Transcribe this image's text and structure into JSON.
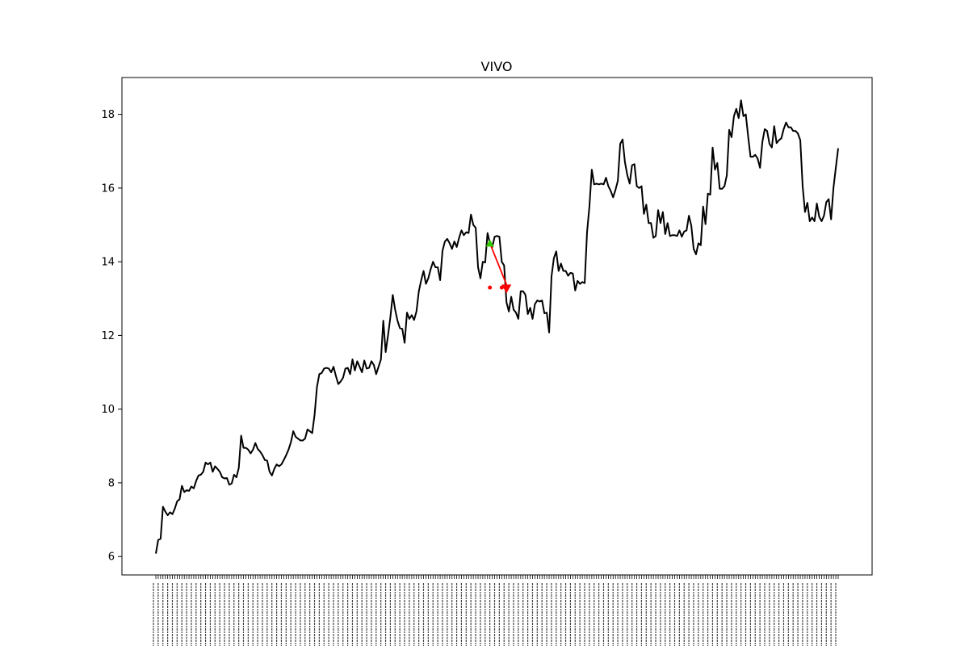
{
  "chart_data": {
    "type": "line",
    "title": "VIVO",
    "xlabel": "",
    "ylabel": "",
    "ylim": [
      5.5,
      19.0
    ],
    "yticks": [
      6,
      8,
      10,
      12,
      14,
      16,
      18
    ],
    "grid": false,
    "colors": {
      "line": "#000000",
      "arrow": "#ff0000",
      "start_marker": "#33cc00",
      "end_marker": "#ff0000",
      "dots": "#ff0000"
    },
    "series": [
      {
        "values": [
          6.08,
          6.45,
          6.48,
          7.35,
          7.22,
          7.12,
          7.2,
          7.15,
          7.3,
          7.5,
          7.55,
          7.92,
          7.75,
          7.8,
          7.78,
          7.9,
          7.85,
          8.05,
          8.2,
          8.22,
          8.3,
          8.55,
          8.5,
          8.55,
          8.3,
          8.45,
          8.38,
          8.3,
          8.15,
          8.12,
          8.13,
          7.95,
          7.98,
          8.22,
          8.15,
          8.4,
          9.28,
          8.95,
          8.95,
          8.9,
          8.8,
          8.9,
          9.08,
          8.92,
          8.85,
          8.75,
          8.62,
          8.6,
          8.3,
          8.2,
          8.38,
          8.5,
          8.45,
          8.5,
          8.62,
          8.75,
          8.9,
          9.1,
          9.4,
          9.25,
          9.2,
          9.15,
          9.15,
          9.2,
          9.45,
          9.4,
          9.35,
          9.85,
          10.6,
          10.95,
          10.98,
          11.1,
          11.12,
          11.1,
          11.0,
          11.15,
          10.9,
          10.68,
          10.75,
          10.85,
          11.1,
          11.12,
          10.95,
          11.35,
          11.05,
          11.3,
          11.15,
          11.0,
          11.32,
          11.1,
          11.12,
          11.3,
          11.2,
          10.95,
          11.15,
          11.35,
          12.4,
          11.55,
          12.0,
          12.5,
          13.1,
          12.7,
          12.4,
          12.2,
          12.18,
          11.8,
          12.62,
          12.45,
          12.55,
          12.42,
          12.65,
          13.2,
          13.5,
          13.75,
          13.4,
          13.55,
          13.8,
          14.0,
          13.85,
          13.85,
          13.5,
          14.3,
          14.55,
          14.62,
          14.5,
          14.35,
          14.55,
          14.4,
          14.65,
          14.85,
          14.72,
          14.8,
          14.78,
          15.28,
          15.0,
          14.92,
          13.85,
          13.55,
          14.0,
          13.98,
          14.78,
          14.5,
          14.4,
          14.68,
          14.7,
          14.68,
          14.0,
          13.9,
          12.9,
          12.65,
          13.05,
          12.7,
          12.62,
          12.45,
          13.2,
          13.2,
          13.1,
          12.58,
          12.75,
          12.45,
          12.85,
          12.95,
          12.92,
          12.95,
          12.6,
          12.62,
          12.08,
          13.6,
          14.1,
          14.28,
          13.75,
          13.95,
          13.75,
          13.75,
          13.62,
          13.7,
          13.68,
          13.22,
          13.48,
          13.4,
          13.45,
          13.42,
          14.8,
          15.5,
          16.5,
          16.1,
          16.12,
          16.1,
          16.12,
          16.1,
          16.28,
          16.05,
          15.92,
          15.75,
          15.95,
          16.2,
          17.2,
          17.32,
          16.7,
          16.35,
          16.12,
          16.62,
          16.65,
          16.05,
          16.0,
          16.05,
          15.3,
          15.55,
          15.05,
          15.05,
          14.65,
          14.7,
          15.4,
          15.05,
          15.35,
          14.75,
          15.05,
          14.7,
          14.72,
          14.72,
          14.7,
          14.85,
          14.68,
          14.82,
          14.85,
          15.25,
          14.98,
          14.35,
          14.2,
          14.5,
          14.45,
          15.5,
          15.02,
          15.85,
          15.82,
          17.1,
          16.5,
          16.68,
          15.98,
          15.98,
          16.05,
          16.35,
          17.58,
          17.38,
          17.95,
          18.15,
          17.9,
          18.38,
          17.95,
          18.0,
          17.4,
          16.85,
          16.85,
          16.9,
          16.8,
          16.55,
          17.25,
          17.6,
          17.55,
          17.2,
          17.1,
          17.68,
          17.22,
          17.3,
          17.35,
          17.6,
          17.78,
          17.65,
          17.65,
          17.55,
          17.55,
          17.48,
          17.3,
          16.05,
          15.35,
          15.6,
          15.1,
          15.2,
          15.1,
          15.58,
          15.22,
          15.1,
          15.25,
          15.62,
          15.7,
          15.15,
          16.0,
          16.55,
          17.08
        ]
      }
    ],
    "annotations": {
      "arrow": {
        "from_index": 141,
        "from_value": 14.5,
        "to_index": 148,
        "to_value": 13.25
      },
      "dots": [
        {
          "index": 141,
          "value": 13.3
        },
        {
          "index": 146,
          "value": 13.3
        }
      ]
    },
    "xtick_labels_rotated": true
  }
}
